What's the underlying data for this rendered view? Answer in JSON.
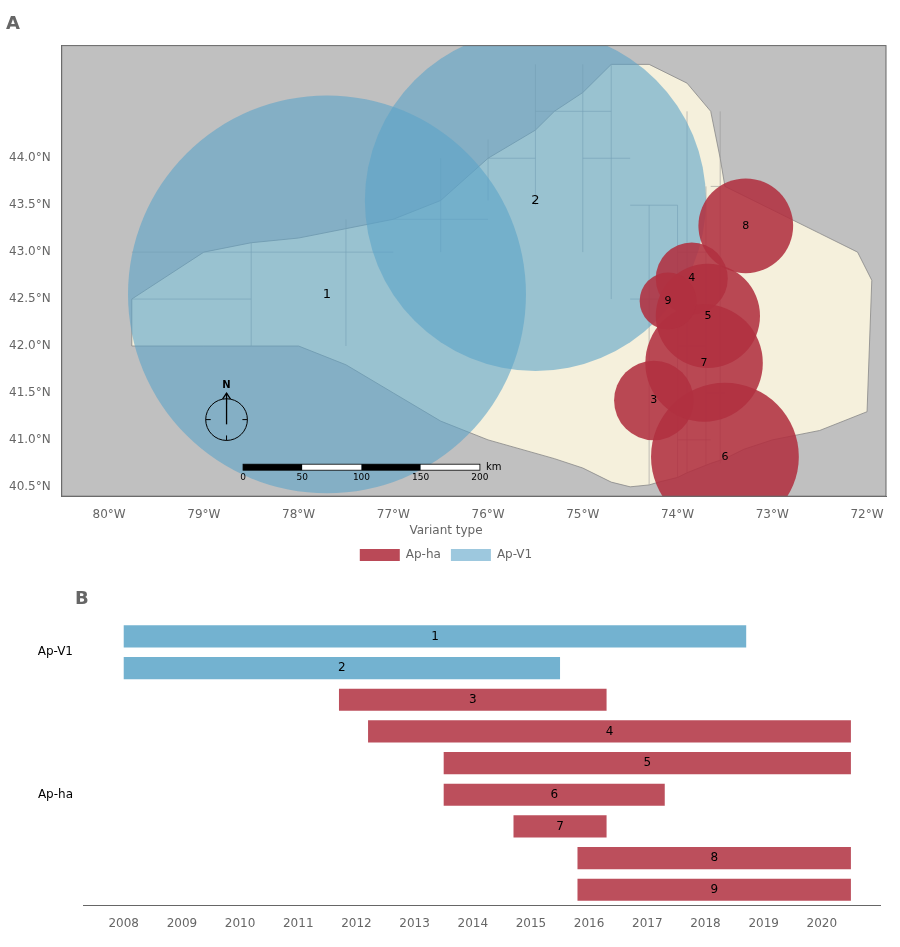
{
  "chart_data": [
    {
      "type": "map",
      "title": "A",
      "xlim": [
        -80.5,
        -71.8
      ],
      "ylim": [
        40.4,
        45.2
      ],
      "xticks": [
        {
          "value": -80,
          "label": "80°W"
        },
        {
          "value": -79,
          "label": "79°W"
        },
        {
          "value": -78,
          "label": "78°W"
        },
        {
          "value": -77,
          "label": "77°W"
        },
        {
          "value": -76,
          "label": "76°W"
        },
        {
          "value": -75,
          "label": "75°W"
        },
        {
          "value": -74,
          "label": "74°W"
        },
        {
          "value": -73,
          "label": "73°W"
        },
        {
          "value": -72,
          "label": "72°W"
        }
      ],
      "yticks": [
        {
          "value": 40.5,
          "label": "40.5°N"
        },
        {
          "value": 41.0,
          "label": "41.0°N"
        },
        {
          "value": 41.5,
          "label": "41.5°N"
        },
        {
          "value": 42.0,
          "label": "42.0°N"
        },
        {
          "value": 42.5,
          "label": "42.5°N"
        },
        {
          "value": 43.0,
          "label": "43.0°N"
        },
        {
          "value": 43.5,
          "label": "43.5°N"
        },
        {
          "value": 44.0,
          "label": "44.0°N"
        }
      ],
      "grid": false,
      "legend": "bottom",
      "legend_title": "Variant type",
      "background": "#C0C0C0",
      "series": [
        {
          "name": "Ap-V1",
          "color": "#5BA4C8",
          "points": [
            {
              "label": "1",
              "x": -77.7,
              "y": 42.55,
              "r": 2.1
            },
            {
              "label": "2",
              "x": -75.5,
              "y": 43.55,
              "r": 1.8
            }
          ]
        },
        {
          "name": "Ap-ha",
          "color": "#B03040",
          "points": [
            {
              "label": "3",
              "x": -74.25,
              "y": 41.42,
              "r": 0.42
            },
            {
              "label": "4",
              "x": -73.85,
              "y": 42.72,
              "r": 0.38
            },
            {
              "label": "5",
              "x": -73.68,
              "y": 42.32,
              "r": 0.55
            },
            {
              "label": "6",
              "x": -73.5,
              "y": 40.82,
              "r": 0.78
            },
            {
              "label": "7",
              "x": -73.72,
              "y": 41.82,
              "r": 0.62
            },
            {
              "label": "8",
              "x": -73.28,
              "y": 43.28,
              "r": 0.5
            },
            {
              "label": "9",
              "x": -74.1,
              "y": 42.48,
              "r": 0.3
            }
          ]
        }
      ],
      "region": {
        "color": "#F5F0DC",
        "edge_color": "#888888",
        "x": [
          -79.76,
          -79.76,
          -79.0,
          -78.5,
          -78.0,
          -77.5,
          -77.0,
          -76.5,
          -76.0,
          -75.5,
          -75.3,
          -75.0,
          -74.7,
          -74.3,
          -73.9,
          -73.65,
          -73.55,
          -73.5,
          -72.5,
          -72.1,
          -71.95,
          -72.0,
          -72.5,
          -73.0,
          -73.3,
          -73.5,
          -73.65,
          -73.7,
          -73.9,
          -74.0,
          -74.2,
          -74.3,
          -74.5,
          -74.7,
          -75.0,
          -75.3,
          -76.0,
          -76.5,
          -77.0,
          -77.5,
          -78.0,
          -78.5,
          -79.0,
          -79.76
        ],
        "y": [
          42.0,
          42.5,
          43.0,
          43.1,
          43.15,
          43.25,
          43.35,
          43.55,
          44.0,
          44.3,
          44.5,
          44.7,
          45.0,
          45.0,
          44.8,
          44.5,
          44.0,
          43.7,
          43.2,
          43.0,
          42.7,
          41.3,
          41.1,
          41.0,
          40.9,
          40.8,
          40.75,
          40.73,
          40.65,
          40.6,
          40.55,
          40.52,
          40.5,
          40.55,
          40.7,
          40.8,
          41.0,
          41.2,
          41.5,
          41.8,
          42.0,
          42.0,
          42.0,
          42.0
        ]
      },
      "county_lines": {
        "color": "#999999",
        "lines": [
          [
            [
              -79.76,
              -78.5
            ],
            [
              42.5,
              42.5
            ]
          ],
          [
            [
              -79.76,
              -78.5
            ],
            [
              43.0,
              43.0
            ]
          ],
          [
            [
              -78.5,
              -77.0
            ],
            [
              43.0,
              43.0
            ]
          ],
          [
            [
              -77.5,
              -77.5
            ],
            [
              43.0,
              43.35
            ]
          ],
          [
            [
              -77.0,
              -76.0
            ],
            [
              43.35,
              43.35
            ]
          ],
          [
            [
              -76.0,
              -75.5
            ],
            [
              44.0,
              44.0
            ]
          ],
          [
            [
              -75.5,
              -74.7
            ],
            [
              44.5,
              44.5
            ]
          ],
          [
            [
              -75.0,
              -74.5
            ],
            [
              44.0,
              44.0
            ]
          ],
          [
            [
              -74.5,
              -74.0
            ],
            [
              43.5,
              43.5
            ]
          ],
          [
            [
              -74.0,
              -73.65
            ],
            [
              43.0,
              43.0
            ]
          ],
          [
            [
              -73.65,
              -73.55
            ],
            [
              43.7,
              43.7
            ]
          ],
          [
            [
              -74.5,
              -74.0
            ],
            [
              42.5,
              42.5
            ]
          ],
          [
            [
              -74.0,
              -73.7
            ],
            [
              42.0,
              42.0
            ]
          ],
          [
            [
              -73.7,
              -73.5
            ],
            [
              41.5,
              41.5
            ]
          ],
          [
            [
              -74.0,
              -73.65
            ],
            [
              41.0,
              41.0
            ]
          ],
          [
            [
              -78.5,
              -78.5
            ],
            [
              42.0,
              43.1
            ]
          ],
          [
            [
              -77.5,
              -77.5
            ],
            [
              42.0,
              43.0
            ]
          ],
          [
            [
              -76.5,
              -76.5
            ],
            [
              43.0,
              44.0
            ]
          ],
          [
            [
              -76.0,
              -76.0
            ],
            [
              43.55,
              44.2
            ]
          ],
          [
            [
              -75.5,
              -75.5
            ],
            [
              43.5,
              45.0
            ]
          ],
          [
            [
              -75.0,
              -75.0
            ],
            [
              43.0,
              45.0
            ]
          ],
          [
            [
              -74.7,
              -74.7
            ],
            [
              42.5,
              45.0
            ]
          ],
          [
            [
              -74.3,
              -74.3
            ],
            [
              40.52,
              43.5
            ]
          ],
          [
            [
              -74.0,
              -74.0
            ],
            [
              40.6,
              43.5
            ]
          ],
          [
            [
              -73.9,
              -73.9
            ],
            [
              40.65,
              44.5
            ]
          ],
          [
            [
              -73.7,
              -73.7
            ],
            [
              40.73,
              43.7
            ]
          ],
          [
            [
              -73.55,
              -73.55
            ],
            [
              40.75,
              44.5
            ]
          ]
        ]
      },
      "compass": "N",
      "scale_bar": {
        "span": 2.5,
        "ticks": [
          0,
          50,
          100,
          150,
          200
        ],
        "unit": "km"
      }
    },
    {
      "type": "bar",
      "title": "B",
      "orientation": "horizontal",
      "categories": [
        "1",
        "2",
        "3",
        "4",
        "5",
        "6",
        "7",
        "8",
        "9"
      ],
      "values": [
        [
          2008.0,
          2018.7
        ],
        [
          2008.0,
          2015.5
        ],
        [
          2011.7,
          2016.3
        ],
        [
          2012.2,
          2020.5
        ],
        [
          2013.5,
          2020.5
        ],
        [
          2013.5,
          2017.3
        ],
        [
          2014.7,
          2016.3
        ],
        [
          2015.8,
          2020.5
        ],
        [
          2015.8,
          2020.5
        ]
      ],
      "colors": [
        "#5BA4C8",
        "#5BA4C8",
        "#B03040",
        "#B03040",
        "#B03040",
        "#B03040",
        "#B03040",
        "#B03040",
        "#B03040"
      ],
      "xlim": [
        2007.3,
        2021.0
      ],
      "xticks": [
        2008,
        2009,
        2010,
        2011,
        2012,
        2013,
        2014,
        2015,
        2016,
        2017,
        2018,
        2019,
        2020
      ],
      "grid": false,
      "tick_labels": "x",
      "groups": [
        {
          "label": "Ap-V1",
          "categories": [
            "1",
            "2"
          ]
        },
        {
          "label": "Ap-ha",
          "categories": [
            "3",
            "4",
            "5",
            "6",
            "7",
            "8",
            "9"
          ]
        }
      ]
    }
  ]
}
